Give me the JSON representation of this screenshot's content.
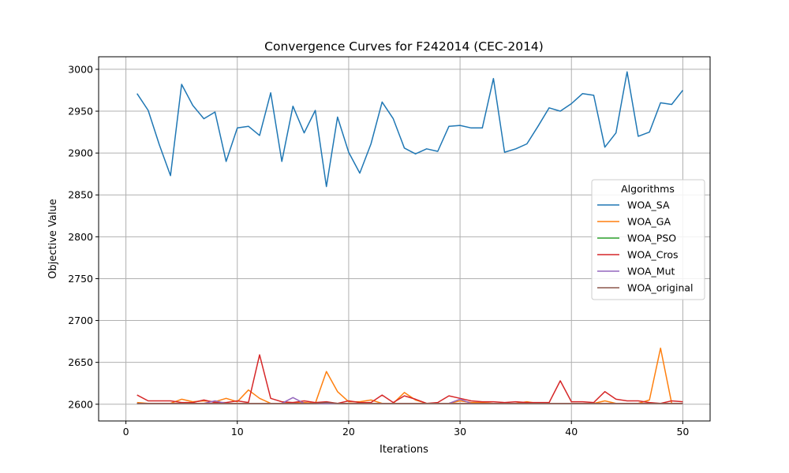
{
  "chart_data": {
    "type": "line",
    "title": "Convergence Curves for F242014 (CEC-2014)",
    "xlabel": "Iterations",
    "ylabel": "Objective Value",
    "xlim": [
      -2.45,
      52.45
    ],
    "ylim": [
      2580,
      3015
    ],
    "xticks": [
      0,
      10,
      20,
      30,
      40,
      50
    ],
    "yticks": [
      2600,
      2650,
      2700,
      2750,
      2800,
      2850,
      2900,
      2950,
      3000
    ],
    "grid": true,
    "legend": {
      "title": "Algorithms",
      "placement": "center-right"
    },
    "x": [
      1,
      2,
      3,
      4,
      5,
      6,
      7,
      8,
      9,
      10,
      11,
      12,
      13,
      14,
      15,
      16,
      17,
      18,
      19,
      20,
      21,
      22,
      23,
      24,
      25,
      26,
      27,
      28,
      29,
      30,
      31,
      32,
      33,
      34,
      35,
      36,
      37,
      38,
      39,
      40,
      41,
      42,
      43,
      44,
      45,
      46,
      47,
      48,
      49,
      50
    ],
    "series": [
      {
        "name": "WOA_SA",
        "color": "#1f77b4",
        "values": [
          2971,
          2951,
          2910,
          2873,
          2982,
          2957,
          2941,
          2949,
          2890,
          2930,
          2932,
          2921,
          2972,
          2890,
          2956,
          2924,
          2951,
          2860,
          2943,
          2901,
          2876,
          2911,
          2961,
          2941,
          2906,
          2899,
          2905,
          2902,
          2932,
          2933,
          2930,
          2930,
          2989,
          2901,
          2905,
          2911,
          2932,
          2954,
          2950,
          2959,
          2971,
          2969,
          2907,
          2924,
          2997,
          2920,
          2925,
          2960,
          2958,
          2975
        ]
      },
      {
        "name": "WOA_GA",
        "color": "#ff7f0e",
        "values": [
          2602,
          2601,
          2601,
          2601,
          2606,
          2603,
          2604,
          2603,
          2607,
          2603,
          2617,
          2607,
          2601,
          2601,
          2602,
          2602,
          2601,
          2639,
          2615,
          2603,
          2603,
          2605,
          2601,
          2601,
          2614,
          2605,
          2601,
          2601,
          2601,
          2604,
          2602,
          2602,
          2601,
          2601,
          2601,
          2603,
          2601,
          2601,
          2601,
          2601,
          2601,
          2601,
          2604,
          2601,
          2601,
          2601,
          2605,
          2667,
          2601,
          2601
        ]
      },
      {
        "name": "WOA_PSO",
        "color": "#2ca02c",
        "values": [
          2601,
          2601,
          2601,
          2601,
          2601,
          2601,
          2601,
          2601,
          2601,
          2601,
          2601,
          2601,
          2601,
          2601,
          2601,
          2601,
          2601,
          2601,
          2601,
          2601,
          2601,
          2601,
          2601,
          2601,
          2601,
          2601,
          2601,
          2601,
          2601,
          2601,
          2601,
          2601,
          2601,
          2601,
          2601,
          2601,
          2601,
          2601,
          2601,
          2601,
          2601,
          2601,
          2601,
          2601,
          2601,
          2601,
          2601,
          2601,
          2601,
          2601
        ]
      },
      {
        "name": "WOA_Cros",
        "color": "#d62728",
        "values": [
          2611,
          2604,
          2604,
          2604,
          2602,
          2602,
          2605,
          2602,
          2602,
          2604,
          2602,
          2659,
          2607,
          2603,
          2602,
          2604,
          2602,
          2603,
          2601,
          2604,
          2602,
          2602,
          2611,
          2602,
          2610,
          2606,
          2601,
          2602,
          2610,
          2607,
          2604,
          2603,
          2603,
          2602,
          2603,
          2602,
          2602,
          2602,
          2628,
          2603,
          2603,
          2602,
          2615,
          2606,
          2604,
          2604,
          2602,
          2601,
          2604,
          2603
        ]
      },
      {
        "name": "WOA_Mut",
        "color": "#9467bd",
        "values": [
          2601,
          2601,
          2601,
          2601,
          2601,
          2601,
          2601,
          2604,
          2601,
          2601,
          2601,
          2601,
          2601,
          2601,
          2608,
          2601,
          2601,
          2601,
          2601,
          2601,
          2601,
          2601,
          2601,
          2601,
          2601,
          2601,
          2601,
          2601,
          2601,
          2606,
          2601,
          2601,
          2601,
          2601,
          2601,
          2601,
          2601,
          2601,
          2601,
          2601,
          2601,
          2601,
          2601,
          2601,
          2601,
          2601,
          2601,
          2601,
          2601,
          2601
        ]
      },
      {
        "name": "WOA_original",
        "color": "#8c564b",
        "values": [
          2601,
          2601,
          2601,
          2601,
          2601,
          2601,
          2601,
          2601,
          2601,
          2601,
          2601,
          2601,
          2601,
          2601,
          2601,
          2601,
          2601,
          2602,
          2601,
          2601,
          2601,
          2601,
          2601,
          2601,
          2601,
          2601,
          2601,
          2601,
          2601,
          2601,
          2601,
          2601,
          2601,
          2601,
          2601,
          2601,
          2601,
          2601,
          2601,
          2601,
          2601,
          2601,
          2601,
          2601,
          2601,
          2601,
          2601,
          2601,
          2601,
          2601
        ]
      }
    ]
  }
}
